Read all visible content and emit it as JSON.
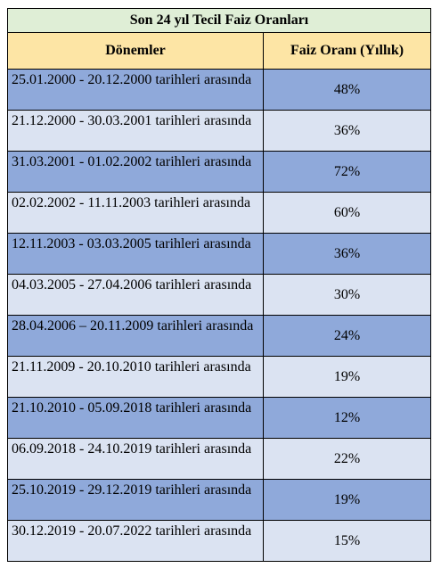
{
  "title": "Son 24 yıl Tecil Faiz Oranları",
  "headers": {
    "period": "Dönemler",
    "rate": "Faiz Oranı (Yıllık)"
  },
  "rows": [
    {
      "period": "25.01.2000 - 20.12.2000 tarihleri arasında",
      "rate": "48%",
      "shade": "dark"
    },
    {
      "period": "21.12.2000 - 30.03.2001 tarihleri arasında",
      "rate": "36%",
      "shade": "light"
    },
    {
      "period": "31.03.2001 - 01.02.2002 tarihleri arasında",
      "rate": "72%",
      "shade": "dark"
    },
    {
      "period": "02.02.2002 - 11.11.2003 tarihleri arasında",
      "rate": "60%",
      "shade": "light"
    },
    {
      "period": "12.11.2003 - 03.03.2005 tarihleri arasında",
      "rate": "36%",
      "shade": "dark"
    },
    {
      "period": "04.03.2005 - 27.04.2006 tarihleri arasında",
      "rate": "30%",
      "shade": "light"
    },
    {
      "period": "28.04.2006 – 20.11.2009 tarihleri arasında",
      "rate": "24%",
      "shade": "dark"
    },
    {
      "period": "21.11.2009 - 20.10.2010 tarihleri arasında",
      "rate": "19%",
      "shade": "light"
    },
    {
      "period": "21.10.2010 - 05.09.2018 tarihleri arasında",
      "rate": "12%",
      "shade": "dark"
    },
    {
      "period": "06.09.2018 - 24.10.2019 tarihleri arasında",
      "rate": "22%",
      "shade": "light"
    },
    {
      "period": "25.10.2019 - 29.12.2019 tarihleri arasında",
      "rate": "19%",
      "shade": "dark"
    },
    {
      "period": "30.12.2019 - 20.07.2022 tarihleri arasında",
      "rate": "15%",
      "shade": "light"
    }
  ],
  "colors": {
    "title_bg": "#dfeed6",
    "header_bg": "#fde5a5",
    "row_dark": "#8fa9da",
    "row_light": "#dbe3f2",
    "border": "#000000"
  }
}
